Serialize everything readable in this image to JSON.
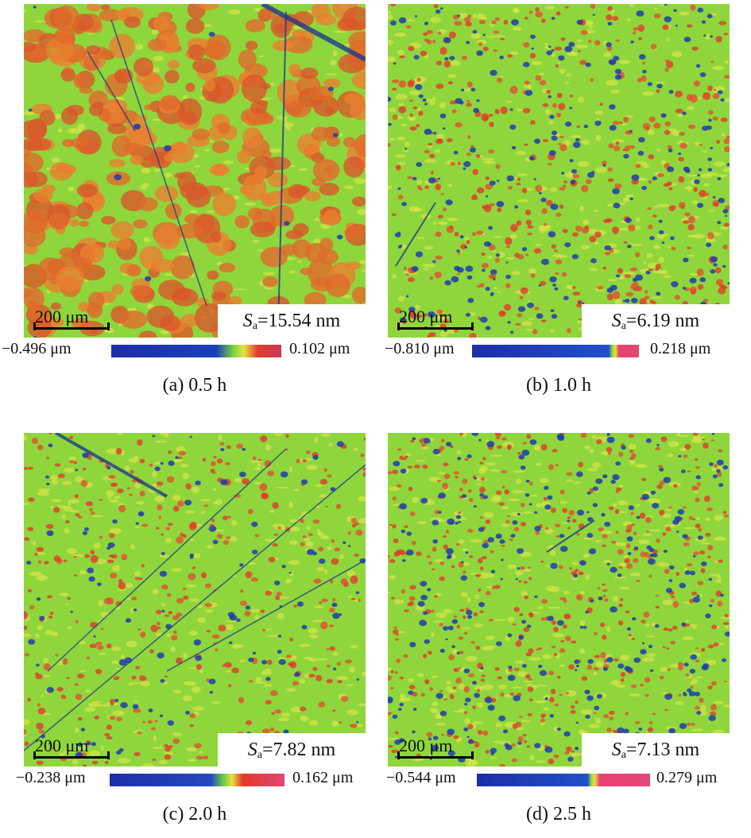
{
  "panels": [
    {
      "id": "a",
      "scale_label": "200 μm",
      "sa_symbol": "S",
      "sa_sub": "a",
      "sa_value": "=15.54 nm",
      "cbar_min": "−0.496 μm",
      "cbar_max": "0.102 μm",
      "caption": "(a) 0.5 h",
      "base_color": "#8fd63c",
      "colorbar_stops": [
        [
          "#1c2ea8",
          0
        ],
        [
          "#1840b8",
          0.62
        ],
        [
          "#7ad83a",
          0.72
        ],
        [
          "#e8e040",
          0.78
        ],
        [
          "#e23a2a",
          0.86
        ],
        [
          "#c83a5a",
          1
        ]
      ]
    },
    {
      "id": "b",
      "scale_label": "200 μm",
      "sa_symbol": "S",
      "sa_sub": "a",
      "sa_value": "=6.19 nm",
      "cbar_min": "−0.810 μm",
      "cbar_max": "0.218 μm",
      "caption": "(b) 1.0 h",
      "base_color": "#8fd63c",
      "colorbar_stops": [
        [
          "#1c2ea8",
          0
        ],
        [
          "#2050c8",
          0.82
        ],
        [
          "#8fd63c",
          0.84
        ],
        [
          "#e8e040",
          0.86
        ],
        [
          "#e84070",
          0.88
        ],
        [
          "#e24878",
          1
        ]
      ]
    },
    {
      "id": "c",
      "scale_label": "200 μm",
      "sa_symbol": "S",
      "sa_sub": "a",
      "sa_value": "=7.82 nm",
      "cbar_min": "−0.238 μm",
      "cbar_max": "0.162 μm",
      "caption": "(c) 2.0 h",
      "base_color": "#8fd63c",
      "colorbar_stops": [
        [
          "#1c2ea8",
          0
        ],
        [
          "#2448c0",
          0.58
        ],
        [
          "#6ccc40",
          0.65
        ],
        [
          "#e8e040",
          0.7
        ],
        [
          "#e23a2a",
          0.76
        ],
        [
          "#e04876",
          1
        ]
      ]
    },
    {
      "id": "d",
      "scale_label": "200 μm",
      "sa_symbol": "S",
      "sa_sub": "a",
      "sa_value": "=7.13 nm",
      "cbar_min": "−0.544 μm",
      "cbar_max": "0.279 μm",
      "caption": "(d) 2.5 h",
      "base_color": "#8fd63c",
      "colorbar_stops": [
        [
          "#1c2ea8",
          0
        ],
        [
          "#2050c8",
          0.64
        ],
        [
          "#8fd63c",
          0.66
        ],
        [
          "#e8e040",
          0.68
        ],
        [
          "#e84070",
          0.71
        ],
        [
          "#e24878",
          1
        ]
      ]
    }
  ]
}
